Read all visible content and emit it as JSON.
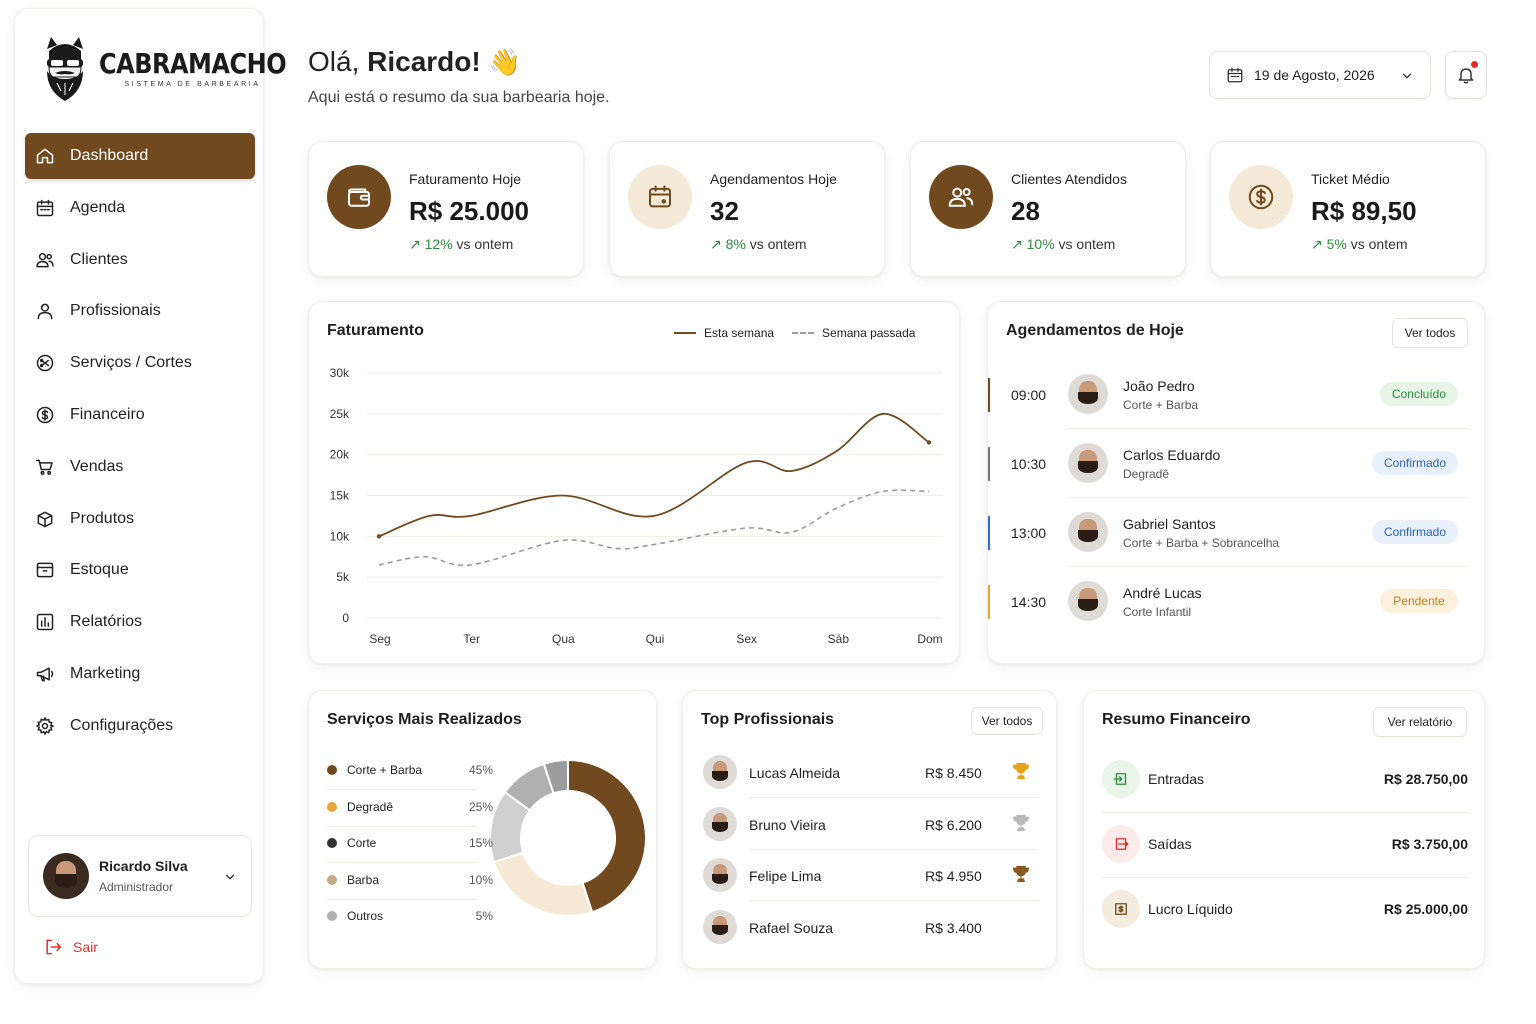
{
  "brand": {
    "name": "CABRAMACHO",
    "tagline": "SISTEMA DE BARBEARIA"
  },
  "sidebar": {
    "items": [
      {
        "label": "Dashboard",
        "icon": "home-icon",
        "active": true
      },
      {
        "label": "Agenda",
        "icon": "calendar-icon"
      },
      {
        "label": "Clientes",
        "icon": "users-icon"
      },
      {
        "label": "Profissionais",
        "icon": "user-icon"
      },
      {
        "label": "Serviços / Cortes",
        "icon": "scissors-badge-icon"
      },
      {
        "label": "Financeiro",
        "icon": "dollar-circle-icon"
      },
      {
        "label": "Vendas",
        "icon": "cart-icon"
      },
      {
        "label": "Produtos",
        "icon": "package-icon"
      },
      {
        "label": "Estoque",
        "icon": "archive-icon"
      },
      {
        "label": "Relatórios",
        "icon": "report-icon"
      },
      {
        "label": "Marketing",
        "icon": "megaphone-icon"
      },
      {
        "label": "Configurações",
        "icon": "gear-icon"
      }
    ],
    "user": {
      "name": "Ricardo Silva",
      "role": "Administrador"
    },
    "logout_label": "Sair"
  },
  "header": {
    "greeting_prefix": "Olá,",
    "greeting_name": "Ricardo!",
    "greeting_emoji": "👋",
    "subtitle": "Aqui está o resumo da sua barbearia hoje.",
    "date": "19 de Agosto, 2026"
  },
  "kpis": [
    {
      "label": "Faturamento Hoje",
      "value": "R$ 25.000",
      "trend": "12%",
      "trend_suffix": "vs ontem",
      "icon": "wallet-icon"
    },
    {
      "label": "Agendamentos Hoje",
      "value": "32",
      "trend": "8%",
      "trend_suffix": "vs ontem",
      "icon": "calendar-icon"
    },
    {
      "label": "Clientes Atendidos",
      "value": "28",
      "trend": "10%",
      "trend_suffix": "vs ontem",
      "icon": "users-icon"
    },
    {
      "label": "Ticket Médio",
      "value": "R$ 89,50",
      "trend": "5%",
      "trend_suffix": "vs ontem",
      "icon": "dollar-circle-icon"
    }
  ],
  "revenue": {
    "title": "Faturamento",
    "legend_current": "Esta semana",
    "legend_previous": "Semana passada"
  },
  "chart_data": {
    "type": "line",
    "title": "Faturamento",
    "categories": [
      "Seg",
      "Ter",
      "Qua",
      "Qui",
      "Sex",
      "Sáb",
      "Dom"
    ],
    "y_ticks": [
      "0",
      "5k",
      "10k",
      "15k",
      "20k",
      "25k",
      "30k"
    ],
    "ylim": [
      0,
      30000
    ],
    "grid": true,
    "legend_position": "top-right",
    "series": [
      {
        "name": "Esta semana",
        "style": "solid",
        "color": "#71491f",
        "x": [
          0,
          0.55,
          1,
          2,
          3,
          4,
          4.5,
          5,
          5.5,
          6
        ],
        "values": [
          10000,
          12500,
          12500,
          15000,
          12500,
          19000,
          18000,
          20500,
          25000,
          21500
        ]
      },
      {
        "name": "Semana passada",
        "style": "dashed",
        "color": "#9a9a9a",
        "x": [
          0,
          0.5,
          1,
          2,
          2.6,
          3,
          4,
          4.5,
          5,
          5.5,
          6
        ],
        "values": [
          6500,
          7500,
          6500,
          9500,
          8500,
          9000,
          11000,
          10500,
          13500,
          15500,
          15500
        ]
      }
    ]
  },
  "appointments": {
    "title": "Agendamentos de Hoje",
    "view_all": "Ver todos",
    "items": [
      {
        "time": "09:00",
        "name": "João Pedro",
        "service": "Corte + Barba",
        "status": "Concluído",
        "bar": "#71491f",
        "badge_bg": "#e7f5e7",
        "badge_fg": "#2e8b3e"
      },
      {
        "time": "10:30",
        "name": "Carlos Eduardo",
        "service": "Degradê",
        "status": "Confirmado",
        "bar": "#777777",
        "badge_bg": "#e8f0fb",
        "badge_fg": "#2b5fb0"
      },
      {
        "time": "13:00",
        "name": "Gabriel Santos",
        "service": "Corte + Barba + Sobrancelha",
        "status": "Confirmado",
        "bar": "#2b6fd6",
        "badge_bg": "#e8f0fb",
        "badge_fg": "#2b5fb0"
      },
      {
        "time": "14:30",
        "name": "André Lucas",
        "service": "Corte Infantil",
        "status": "Pendente",
        "bar": "#e6a73a",
        "badge_bg": "#fdf1de",
        "badge_fg": "#c27a1a"
      }
    ]
  },
  "services": {
    "title": "Serviços Mais Realizados",
    "items": [
      {
        "label": "Corte + Barba",
        "pct": "45%",
        "value": 45,
        "color": "#71491f"
      },
      {
        "label": "Degradê",
        "pct": "25%",
        "value": 25,
        "color": "#f6ead7"
      },
      {
        "label": "Corte",
        "pct": "15%",
        "value": 15,
        "color": "#cfcfcf"
      },
      {
        "label": "Barba",
        "pct": "10%",
        "value": 10,
        "color": "#b0b0b0"
      },
      {
        "label": "Outros",
        "pct": "5%",
        "value": 5,
        "color": "#9c9c9c"
      }
    ],
    "legend_dots": [
      "#71491f",
      "#e6a73a",
      "#333333",
      "#c4a888",
      "#b0b0b0"
    ]
  },
  "top_professionals": {
    "title": "Top Profissionais",
    "view_all": "Ver todos",
    "items": [
      {
        "name": "Lucas Almeida",
        "value": "R$ 8.450",
        "trophy": "#e3a21a"
      },
      {
        "name": "Bruno Vieira",
        "value": "R$ 6.200",
        "trophy": "#b9b9b9"
      },
      {
        "name": "Felipe Lima",
        "value": "R$ 4.950",
        "trophy": "#8a5a25"
      },
      {
        "name": "Rafael Souza",
        "value": "R$ 3.400",
        "trophy": ""
      }
    ]
  },
  "financial": {
    "title": "Resumo Financeiro",
    "view_report": "Ver relatório",
    "items": [
      {
        "label": "Entradas",
        "value": "R$ 28.750,00",
        "icon": "arrow-in-icon",
        "bg": "#e8f5e8",
        "fg": "#2e8b3e"
      },
      {
        "label": "Saídas",
        "value": "R$ 3.750,00",
        "icon": "arrow-out-icon",
        "bg": "#fdeaea",
        "fg": "#d8322b"
      },
      {
        "label": "Lucro Líquido",
        "value": "R$ 25.000,00",
        "icon": "money-icon",
        "bg": "#f5ece0",
        "fg": "#71491f"
      }
    ]
  }
}
